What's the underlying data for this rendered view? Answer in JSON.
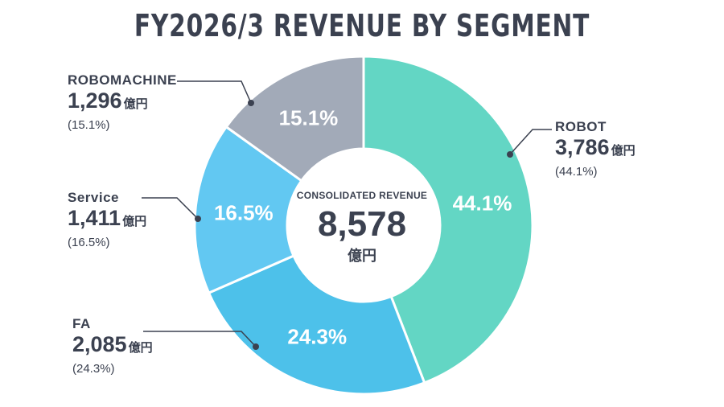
{
  "title": "FY2026/3 REVENUE BY SEGMENT",
  "center": {
    "caption": "CONSOLIDATED REVENUE",
    "total": "8,578",
    "unit": "億円"
  },
  "colors": {
    "robot": "#63d6c4",
    "fa": "#4dc1ea",
    "service": "#62c8f2",
    "robomachine": "#a2aab8",
    "text": "#3b4150",
    "leader": "#3b4150"
  },
  "segments": [
    {
      "name": "ROBOT",
      "value": "3,786",
      "unit": "億円",
      "pct_text": "(44.1%)",
      "slice_label": "44.1%"
    },
    {
      "name": "FA",
      "value": "2,085",
      "unit": "億円",
      "pct_text": "(24.3%)",
      "slice_label": "24.3%"
    },
    {
      "name": "Service",
      "value": "1,411",
      "unit": "億円",
      "pct_text": "(16.5%)",
      "slice_label": "16.5%"
    },
    {
      "name": "ROBOMACHINE",
      "value": "1,296",
      "unit": "億円",
      "pct_text": "(15.1%)",
      "slice_label": "15.1%"
    }
  ],
  "chart_data": {
    "type": "pie",
    "title": "FY2026/3 REVENUE BY SEGMENT",
    "categories": [
      "ROBOT",
      "FA",
      "Service",
      "ROBOMACHINE"
    ],
    "values": [
      3786,
      2085,
      1411,
      1296
    ],
    "percentages": [
      44.1,
      24.3,
      16.5,
      15.1
    ],
    "units": "億円",
    "total": 8578,
    "donut": true
  }
}
